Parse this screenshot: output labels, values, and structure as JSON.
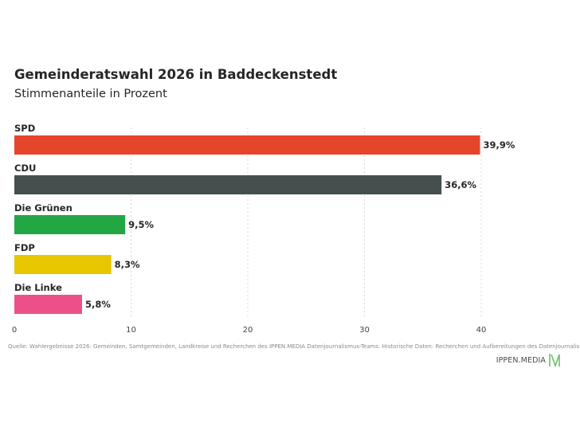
{
  "title": "Gemeinderatswahl 2026 in Baddeckenstedt",
  "subtitle": "Stimmenanteile in Prozent",
  "source": "Quelle: Wahlergebnisse 2026: Gemeinden, Samtgemeinden, Landkreise und Recherchen des IPPEN.MEDIA Datenjournalismus-Teams. Historische Daten: Recherchen und Aufbereitungen des Datenjournalismus-Teams",
  "brand": {
    "name": "IPPEN.MEDIA",
    "icon": "ippen-media-m-logo",
    "color": "#6abf69"
  },
  "chart_data": {
    "type": "bar",
    "orientation": "horizontal",
    "title": "Gemeinderatswahl 2026 in Baddeckenstedt",
    "subtitle": "Stimmenanteile in Prozent",
    "categories": [
      "SPD",
      "CDU",
      "Die Grünen",
      "FDP",
      "Die Linke"
    ],
    "values": [
      39.9,
      36.6,
      9.5,
      8.3,
      5.8
    ],
    "value_labels": [
      "39,9%",
      "36,6%",
      "9,5%",
      "8,3%",
      "5,8%"
    ],
    "colors": [
      "#e5452b",
      "#454f4e",
      "#22a744",
      "#e8c600",
      "#ec5088"
    ],
    "xlim": [
      0,
      40
    ],
    "xticks": [
      "0",
      "10",
      "20",
      "30",
      "40"
    ],
    "grid": "vertical-dotted",
    "legend": "none"
  }
}
